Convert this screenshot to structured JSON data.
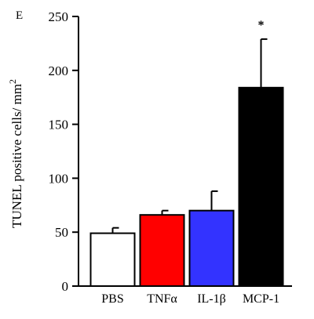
{
  "panel_label": "E",
  "chart_data": {
    "type": "bar",
    "title": "",
    "xlabel": "",
    "ylabel": "TUNEL positive cells/ mm2",
    "ylabel_main": "TUNEL positive cells/ mm",
    "ylabel_sup": "2",
    "ylim": [
      0,
      250
    ],
    "yticks": [
      0,
      50,
      100,
      150,
      200,
      250
    ],
    "grid": false,
    "categories": [
      "PBS",
      "TNFα",
      "IL-1β",
      "MCP-1"
    ],
    "values": [
      49,
      66,
      70,
      184
    ],
    "errors": [
      5,
      4,
      18,
      45
    ],
    "colors": [
      "#ffffff",
      "#ff0000",
      "#3333ff",
      "#000000"
    ],
    "annotations": [
      {
        "category": "MCP-1",
        "text": "*"
      }
    ]
  }
}
